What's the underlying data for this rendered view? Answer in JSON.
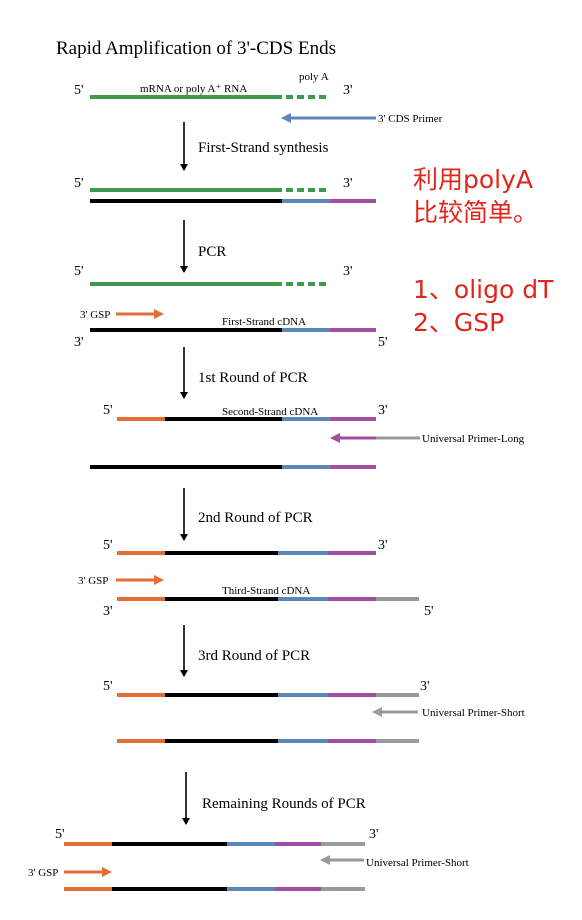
{
  "title": "Rapid Amplification of 3'-CDS Ends",
  "colors": {
    "green": "#3d9a4e",
    "blue": "#5b87bb",
    "purple": "#a14fa0",
    "orange": "#e26d37",
    "gray": "#9a9a9a",
    "black": "#000000",
    "note": "#e0261c"
  },
  "ends": {
    "five": "5'",
    "three": "3'"
  },
  "labels": {
    "mrna": "mRNA or poly A⁺ RNA",
    "polya": "poly A",
    "cds_primer": "3' CDS Primer",
    "gsp": "3' GSP",
    "first_cdna": "First-Strand cDNA",
    "second_cdna": "Second-Strand cDNA",
    "third_cdna": "Third-Strand cDNA",
    "up_long": "Universal Primer-Long",
    "up_short": "Universal Primer-Short"
  },
  "steps": {
    "first_strand": "First-Strand synthesis",
    "pcr": "PCR",
    "round1": "1st Round of PCR",
    "round2": "2nd Round of PCR",
    "round3": "3rd Round of PCR",
    "remaining": "Remaining Rounds of PCR"
  },
  "notes": {
    "line1": "利用polyA",
    "line2": "比较简单。",
    "line3": "1、oligo dT",
    "line4": "2、GSP"
  }
}
